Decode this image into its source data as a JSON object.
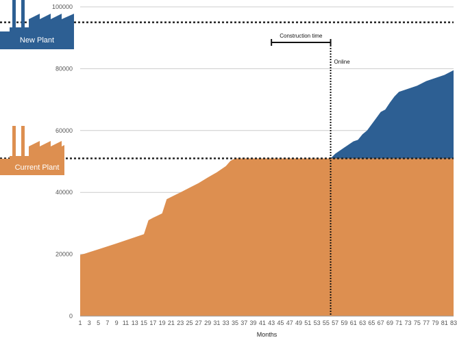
{
  "chart_data": {
    "type": "area",
    "xlabel": "Months",
    "ylabel": "",
    "ylim": [
      0,
      100000
    ],
    "yticks": [
      0,
      20000,
      40000,
      60000,
      80000,
      100000
    ],
    "xticks": [
      1,
      3,
      5,
      7,
      9,
      11,
      13,
      15,
      17,
      19,
      21,
      23,
      25,
      27,
      29,
      31,
      33,
      35,
      37,
      39,
      41,
      43,
      45,
      47,
      49,
      51,
      53,
      55,
      57,
      59,
      61,
      63,
      65,
      67,
      69,
      71,
      73,
      75,
      77,
      79,
      81,
      83
    ],
    "grid": true,
    "colors": {
      "current": "#dd8f50",
      "new": "#2d5f93"
    },
    "series": [
      {
        "name": "Current Plant",
        "x": [
          1,
          2,
          5,
          9,
          11,
          13,
          15,
          16,
          17,
          18,
          19,
          20,
          23,
          25,
          27,
          29,
          31,
          33,
          34,
          35,
          56,
          57,
          83
        ],
        "values": [
          19800,
          20200,
          21600,
          23500,
          24500,
          25500,
          26500,
          31000,
          31800,
          32500,
          33200,
          37800,
          40000,
          41500,
          43000,
          44800,
          46500,
          48500,
          50200,
          51000,
          51000,
          51000,
          51000
        ]
      },
      {
        "name": "New Plant",
        "x": [
          56,
          57,
          59,
          61,
          62,
          63,
          64,
          65,
          66,
          67,
          68,
          69,
          70,
          71,
          73,
          75,
          77,
          79,
          81,
          83
        ],
        "values": [
          51000,
          52500,
          54500,
          56500,
          57000,
          58800,
          60000,
          62000,
          64000,
          66000,
          66800,
          69000,
          71000,
          72500,
          73500,
          74500,
          76000,
          77000,
          78000,
          79500
        ]
      }
    ],
    "reference_lines": [
      {
        "label": "New Plant",
        "y": 95000,
        "style": "dotted"
      },
      {
        "label": "Current Plant",
        "y": 51000,
        "style": "dotted"
      }
    ],
    "annotations": {
      "online": {
        "text": "Online",
        "x": 56
      },
      "construction": {
        "text": "Construction time",
        "x_start": 43,
        "x_end": 56
      }
    }
  }
}
